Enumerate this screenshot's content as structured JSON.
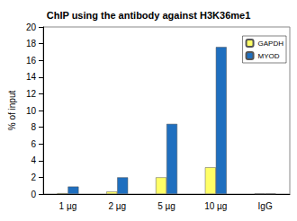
{
  "chart_data": {
    "type": "bar",
    "title": "ChIP using the antibody against H3K36me1",
    "y_label": "% of input",
    "categories": [
      "1 µg",
      "2 µg",
      "5 µg",
      "10 µg",
      "IgG"
    ],
    "series": [
      {
        "name": "GAPDH",
        "color": "#ffff66",
        "values": [
          0.1,
          0.3,
          2.0,
          3.2,
          0.05
        ]
      },
      {
        "name": "MYOD",
        "color": "#1f6fbf",
        "values": [
          0.9,
          2.0,
          8.4,
          17.6,
          0.05
        ]
      }
    ],
    "ylim": [
      0,
      20
    ],
    "yticks": [
      0,
      2,
      4,
      6,
      8,
      10,
      12,
      14,
      16,
      18,
      20
    ],
    "grid": false,
    "legend": "upper right"
  }
}
